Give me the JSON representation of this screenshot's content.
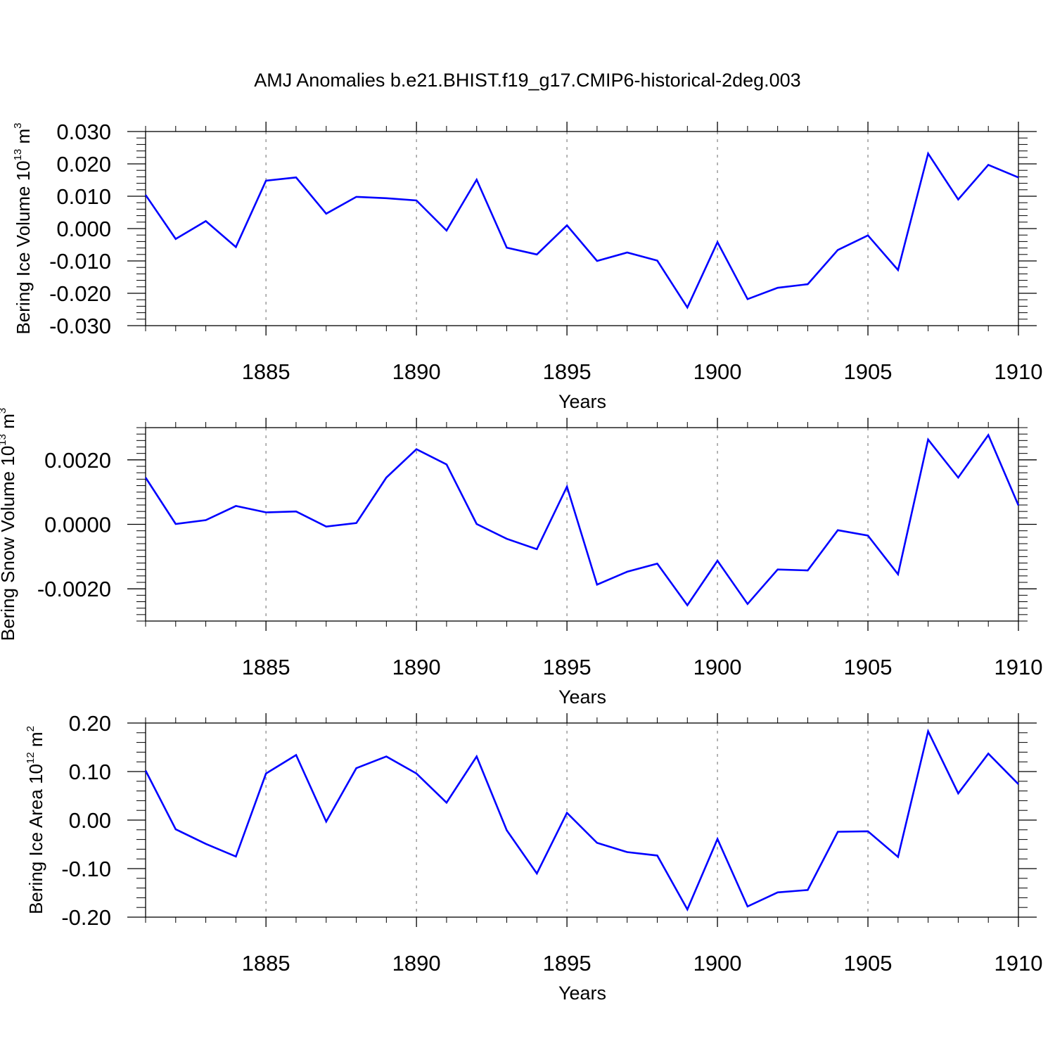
{
  "title": "AMJ Anomalies b.e21.BHIST.f19_g17.CMIP6-historical-2deg.003",
  "colors": {
    "series": "#0000ff",
    "grid": "#8c8c8c",
    "axis": "#000000"
  },
  "chart_data": [
    {
      "type": "line",
      "ylabel": {
        "text": "Bering Ice Volume 10",
        "exp": "13",
        "unit": " m",
        "unit_exp": "3"
      },
      "xlabel": "Years",
      "xlim": [
        1881,
        1910
      ],
      "ylim": [
        -0.03,
        0.03
      ],
      "yticks": [
        0.03,
        0.02,
        0.01,
        0.0,
        -0.01,
        -0.02,
        -0.03
      ],
      "ytick_labels": [
        "0.030",
        "0.020",
        "0.010",
        "0.000",
        "-0.010",
        "-0.020",
        "-0.030"
      ],
      "xticks": [
        1885,
        1890,
        1895,
        1900,
        1905,
        1910
      ],
      "xtick_labels": [
        "1885",
        "1890",
        "1895",
        "1900",
        "1905",
        "1910"
      ],
      "grid": "vertical dashed at labeled years",
      "x": [
        1881,
        1882,
        1883,
        1884,
        1885,
        1886,
        1887,
        1888,
        1889,
        1890,
        1891,
        1892,
        1893,
        1894,
        1895,
        1896,
        1897,
        1898,
        1899,
        1900,
        1901,
        1902,
        1903,
        1904,
        1905,
        1906,
        1907,
        1908,
        1909,
        1910
      ],
      "series": [
        {
          "values": [
            0.0104,
            -0.0032,
            0.0023,
            -0.0057,
            0.0148,
            0.0158,
            0.0046,
            0.0098,
            0.0094,
            0.0087,
            -0.0006,
            0.0151,
            -0.0059,
            -0.008,
            0.001,
            -0.01,
            -0.0074,
            -0.0099,
            -0.0244,
            -0.0042,
            -0.0218,
            -0.0183,
            -0.0172,
            -0.0066,
            -0.0021,
            -0.0128,
            0.0232,
            0.009,
            0.0197,
            0.0158
          ]
        }
      ]
    },
    {
      "type": "line",
      "ylabel": {
        "text": "Bering Snow Volume 10",
        "exp": "13",
        "unit": " m",
        "unit_exp": "3"
      },
      "xlabel": "Years",
      "xlim": [
        1881,
        1910
      ],
      "ylim": [
        -0.003,
        0.003
      ],
      "yticks": [
        0.002,
        0.0,
        -0.002
      ],
      "ytick_labels": [
        "0.0020",
        "0.0000",
        "-0.0020"
      ],
      "xticks": [
        1885,
        1890,
        1895,
        1900,
        1905,
        1910
      ],
      "xtick_labels": [
        "1885",
        "1890",
        "1895",
        "1900",
        "1905",
        "1910"
      ],
      "grid": "vertical dashed at labeled years",
      "x": [
        1881,
        1882,
        1883,
        1884,
        1885,
        1886,
        1887,
        1888,
        1889,
        1890,
        1891,
        1892,
        1893,
        1894,
        1895,
        1896,
        1897,
        1898,
        1899,
        1900,
        1901,
        1902,
        1903,
        1904,
        1905,
        1906,
        1907,
        1908,
        1909,
        1910
      ],
      "series": [
        {
          "values": [
            0.00145,
            1e-05,
            0.00013,
            0.00057,
            0.00037,
            0.0004,
            -7e-05,
            4e-05,
            0.00145,
            0.00233,
            0.00186,
            1e-05,
            -0.00045,
            -0.00077,
            0.00117,
            -0.00187,
            -0.00147,
            -0.00122,
            -0.00251,
            -0.00113,
            -0.00247,
            -0.0014,
            -0.00143,
            -0.00018,
            -0.00035,
            -0.00155,
            0.00263,
            0.00145,
            0.00277,
            0.00059
          ]
        }
      ]
    },
    {
      "type": "line",
      "ylabel": {
        "text": "Bering Ice Area 10",
        "exp": "12",
        "unit": " m",
        "unit_exp": "2"
      },
      "xlabel": "Years",
      "xlim": [
        1881,
        1910
      ],
      "ylim": [
        -0.2,
        0.2
      ],
      "yticks": [
        0.2,
        0.1,
        0.0,
        -0.1,
        -0.2
      ],
      "ytick_labels": [
        "0.20",
        "0.10",
        "0.00",
        "-0.10",
        "-0.20"
      ],
      "xticks": [
        1885,
        1890,
        1895,
        1900,
        1905,
        1910
      ],
      "xtick_labels": [
        "1885",
        "1890",
        "1895",
        "1900",
        "1905",
        "1910"
      ],
      "grid": "vertical dashed at labeled years",
      "x": [
        1881,
        1882,
        1883,
        1884,
        1885,
        1886,
        1887,
        1888,
        1889,
        1890,
        1891,
        1892,
        1893,
        1894,
        1895,
        1896,
        1897,
        1898,
        1899,
        1900,
        1901,
        1902,
        1903,
        1904,
        1905,
        1906,
        1907,
        1908,
        1909,
        1910
      ],
      "series": [
        {
          "values": [
            0.102,
            -0.019,
            -0.049,
            -0.075,
            0.096,
            0.134,
            -0.003,
            0.107,
            0.131,
            0.096,
            0.036,
            0.131,
            -0.021,
            -0.11,
            0.015,
            -0.047,
            -0.066,
            -0.073,
            -0.184,
            -0.039,
            -0.178,
            -0.149,
            -0.144,
            -0.024,
            -0.023,
            -0.076,
            0.183,
            0.055,
            0.137,
            0.074
          ]
        }
      ]
    }
  ]
}
